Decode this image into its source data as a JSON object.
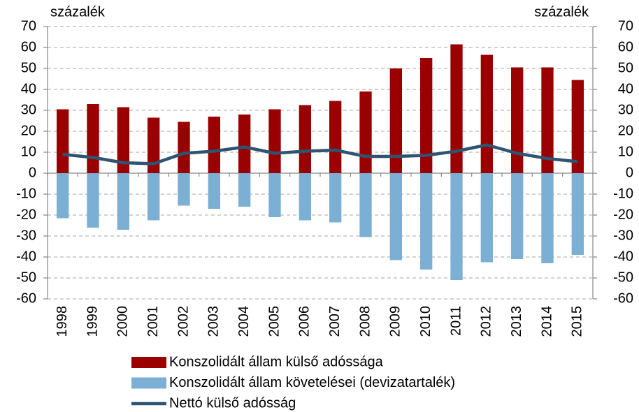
{
  "chart_data": {
    "type": "bar",
    "y_label": "százalék",
    "y2_label": "százalék",
    "categories": [
      "1998",
      "1999",
      "2000",
      "2001",
      "2002",
      "2003",
      "2004",
      "2005",
      "2006",
      "2007",
      "2008",
      "2009",
      "2010",
      "2011",
      "2012",
      "2013",
      "2014",
      "2015"
    ],
    "series": [
      {
        "name": "Konszolidált állam külső adóssága",
        "color": "#9b0000",
        "type": "bar",
        "values": [
          30.5,
          33,
          31.5,
          26.5,
          24.5,
          27,
          28,
          30.5,
          32.5,
          34.5,
          39,
          50,
          55,
          61.5,
          56.5,
          50.5,
          50.5,
          44.5
        ]
      },
      {
        "name": "Konszolidált állam követelései (devizatartalék)",
        "color": "#7bafd4",
        "type": "bar",
        "values": [
          -21.5,
          -26,
          -27,
          -22.5,
          -15.5,
          -17,
          -16,
          -21,
          -22.5,
          -23.5,
          -30.5,
          -41.5,
          -46,
          -51,
          -42.5,
          -41,
          -43,
          -39
        ]
      },
      {
        "name": "Nettó külső adósság",
        "color": "#2e5471",
        "type": "line",
        "values": [
          9,
          7.5,
          5,
          4.5,
          9.5,
          10.5,
          12.5,
          9.5,
          10.5,
          11,
          8,
          8,
          8.5,
          10.5,
          13.5,
          9.5,
          7,
          5.5
        ]
      }
    ],
    "ylim": [
      -60,
      70
    ],
    "yticks": [
      -60,
      -50,
      -40,
      -30,
      -20,
      -10,
      0,
      10,
      20,
      30,
      40,
      50,
      60,
      70
    ],
    "y2lim": [
      -60,
      70
    ],
    "y2ticks": [
      -60,
      -50,
      -40,
      -30,
      -20,
      -10,
      0,
      10,
      20,
      30,
      40,
      50,
      60,
      70
    ],
    "grid": true,
    "legend": "bottom"
  }
}
